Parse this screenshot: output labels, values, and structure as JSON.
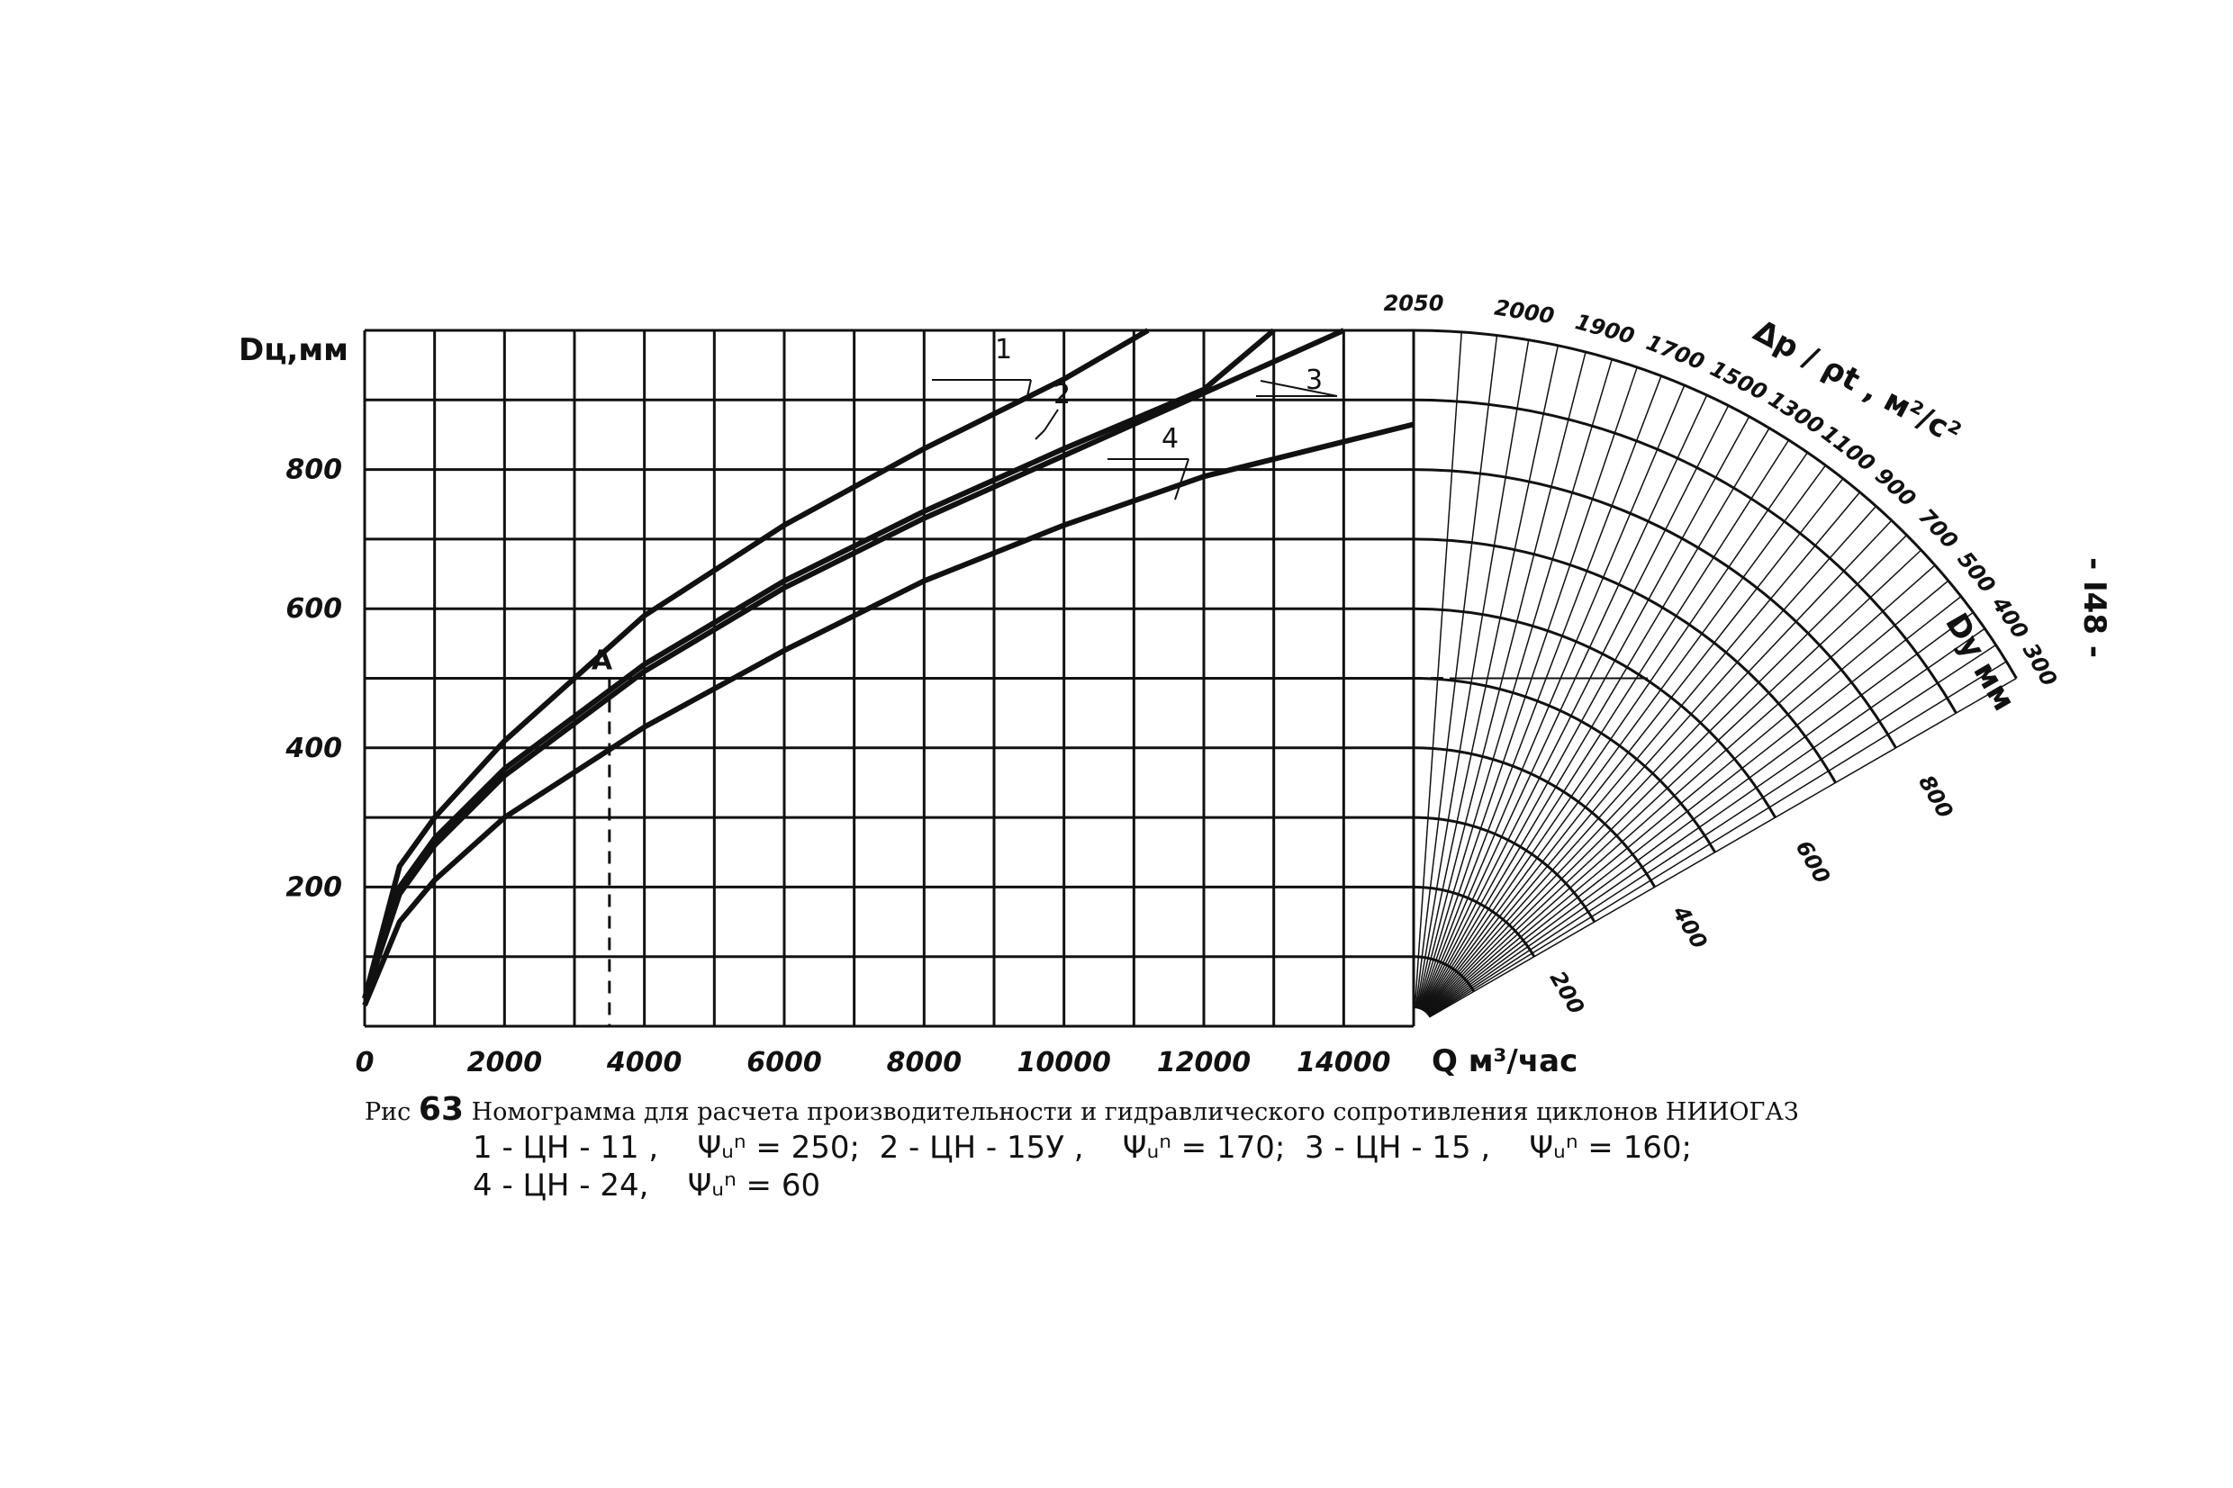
{
  "page_number": "- I48 -",
  "caption": {
    "prefix": "Рис",
    "number": "63",
    "title": "Номограмма для расчета производительности и гидравлического сопротивления циклонов НИИОГАЗ",
    "legend_line_1": "1 - ЦН - 11 ,    Ψᵤⁿ = 250;  2 - ЦН - 15У ,    Ψᵤⁿ = 170;  3 - ЦН - 15 ,    Ψᵤⁿ = 160;",
    "legend_line_2": "4 - ЦН - 24,    Ψᵤⁿ = 60"
  },
  "chart_data": {
    "type": "line",
    "xlabel": "Q м³/час",
    "ylabel": "Dц,мм",
    "x_ticks": [
      "0",
      "2000",
      "4000",
      "6000",
      "8000",
      "10000",
      "12000",
      "14000"
    ],
    "y_ticks": [
      "200",
      "400",
      "600",
      "800"
    ],
    "xlim": [
      0,
      15000
    ],
    "ylim": [
      0,
      1000
    ],
    "grid": true,
    "series": [
      {
        "name": "1",
        "x": [
          0,
          500,
          1000,
          2000,
          4000,
          6000,
          8000,
          10000,
          11200
        ],
        "y": [
          40,
          230,
          300,
          410,
          590,
          720,
          830,
          930,
          1000
        ]
      },
      {
        "name": "2",
        "x": [
          0,
          500,
          1000,
          2000,
          4000,
          6000,
          8000,
          10000,
          12000,
          13000
        ],
        "y": [
          40,
          200,
          270,
          370,
          520,
          640,
          740,
          830,
          915,
          1000
        ]
      },
      {
        "name": "3",
        "x": [
          0,
          500,
          1000,
          2000,
          4000,
          6000,
          8000,
          10000,
          12000,
          14000
        ],
        "y": [
          40,
          190,
          260,
          360,
          510,
          630,
          730,
          820,
          910,
          1000
        ]
      },
      {
        "name": "4",
        "x": [
          0,
          500,
          1000,
          2000,
          4000,
          6000,
          8000,
          10000,
          12000,
          14000,
          15000
        ],
        "y": [
          30,
          150,
          210,
          300,
          430,
          540,
          640,
          720,
          790,
          840,
          865
        ]
      }
    ],
    "annotations": [
      {
        "text": "A",
        "x": 3500,
        "y": 500,
        "dashed_to_axes": true,
        "dashed_line_to_fan": true
      }
    ],
    "curve_labels": [
      "1",
      "2",
      "3",
      "4"
    ],
    "fan_scale": {
      "label": "Δp / ρt , м²/c²",
      "outer_labels": [
        "2050",
        "2000",
        "1900",
        "1700",
        "1500",
        "1300",
        "1100",
        "900",
        "700",
        "500",
        "400",
        "300"
      ],
      "radial_label": "Dу мм",
      "radial_ticks": [
        "200",
        "400",
        "600",
        "800"
      ]
    }
  }
}
